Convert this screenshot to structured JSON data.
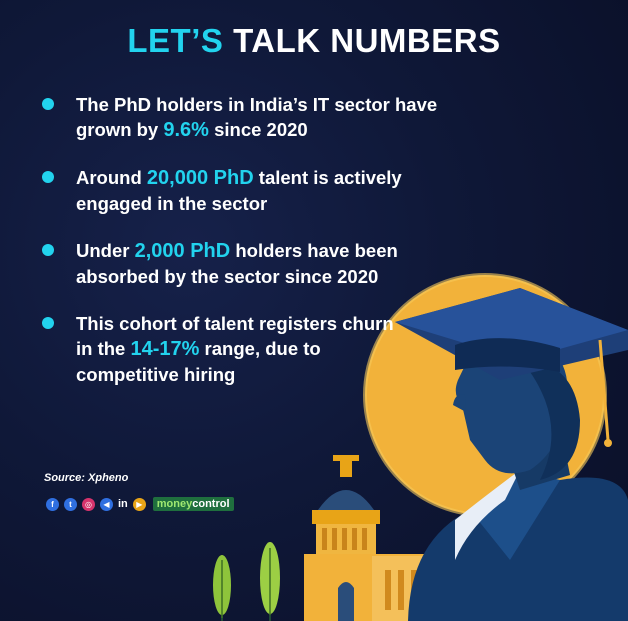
{
  "title": {
    "accent": "LET’S",
    "rest": "TALK NUMBERS"
  },
  "bullets": [
    {
      "pre": "The PhD holders in India’s IT sector have grown by ",
      "hl": "9.6%",
      "post": " since 2020"
    },
    {
      "pre": "Around ",
      "hl": "20,000 PhD",
      "post": " talent is actively engaged in the sector"
    },
    {
      "pre": "Under ",
      "hl": "2,000 PhD",
      "post": " holders have been absorbed by the sector since 2020"
    },
    {
      "pre": "This cohort of talent registers churn in the ",
      "hl": "14-17%",
      "post": " range, due to competitive hiring"
    }
  ],
  "source": "Source: Xpheno",
  "social": {
    "facebook": "f",
    "twitter": "t",
    "instagram": "◎",
    "telegram": "◀",
    "linkedin": "in",
    "youtube": "▶",
    "brand_a": "money",
    "brand_b": "control"
  },
  "colors": {
    "accent": "#22d3ee",
    "background": "#0d1330",
    "sun": "#f2b23a"
  }
}
